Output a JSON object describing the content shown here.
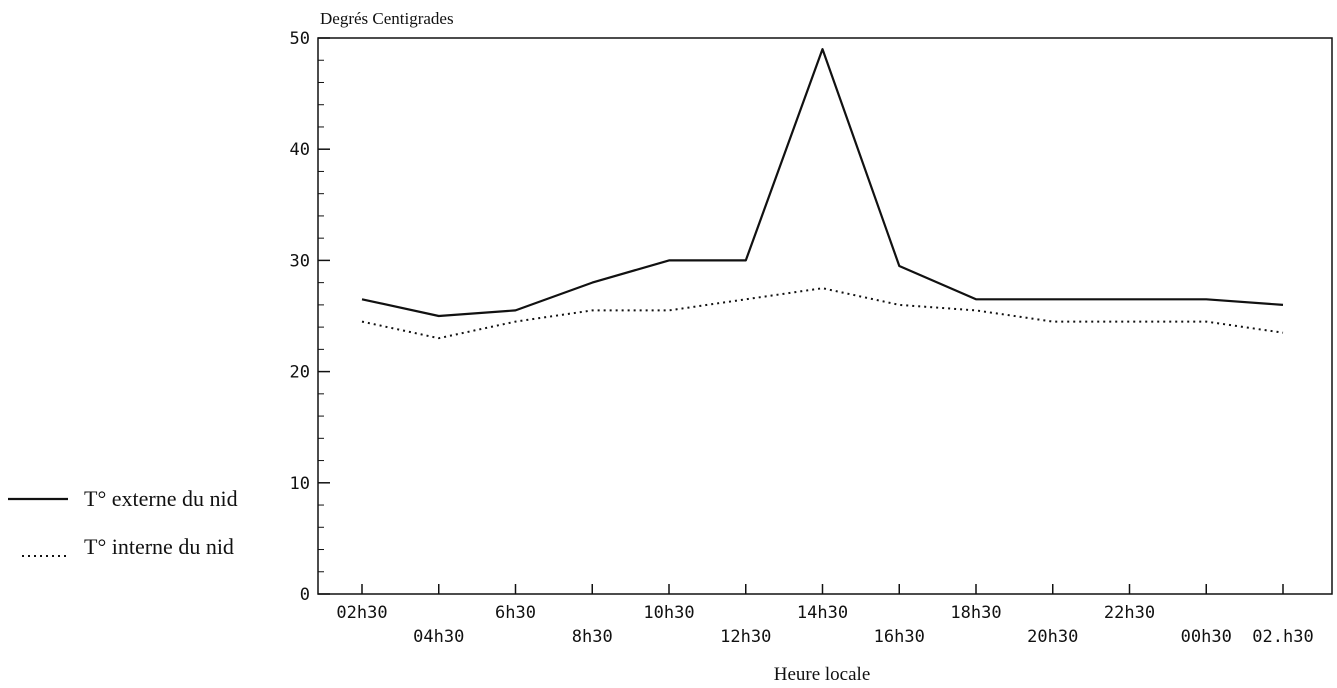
{
  "chart_data": {
    "type": "line",
    "ylabel": "Degrés Centigrades",
    "xlabel": "Heure locale",
    "ylim": [
      0,
      50
    ],
    "yticks": [
      0,
      10,
      20,
      30,
      40,
      50
    ],
    "categories": [
      "02h30",
      "04h30",
      "6h30",
      "8h30",
      "10h30",
      "12h30",
      "14h30",
      "16h30",
      "18h30",
      "20h30",
      "22h30",
      "00h30",
      "02.h30"
    ],
    "series": [
      {
        "name": "T° externe du nid",
        "style": "solid",
        "values": [
          26.5,
          25,
          25.5,
          28,
          30,
          30,
          49,
          29.5,
          26.5,
          26.5,
          26.5,
          26.5,
          26
        ]
      },
      {
        "name": "T° interne du nid",
        "style": "dotted",
        "values": [
          24.5,
          23,
          24.5,
          25.5,
          25.5,
          26.5,
          27.5,
          26,
          25.5,
          24.5,
          24.5,
          24.5,
          23.5
        ]
      }
    ],
    "legend": {
      "position": "left",
      "items": [
        {
          "symbol": "———",
          "label": "T° externe du nid"
        },
        {
          "symbol": ".......",
          "label": "T° interne du nid"
        }
      ]
    },
    "grid": false
  }
}
